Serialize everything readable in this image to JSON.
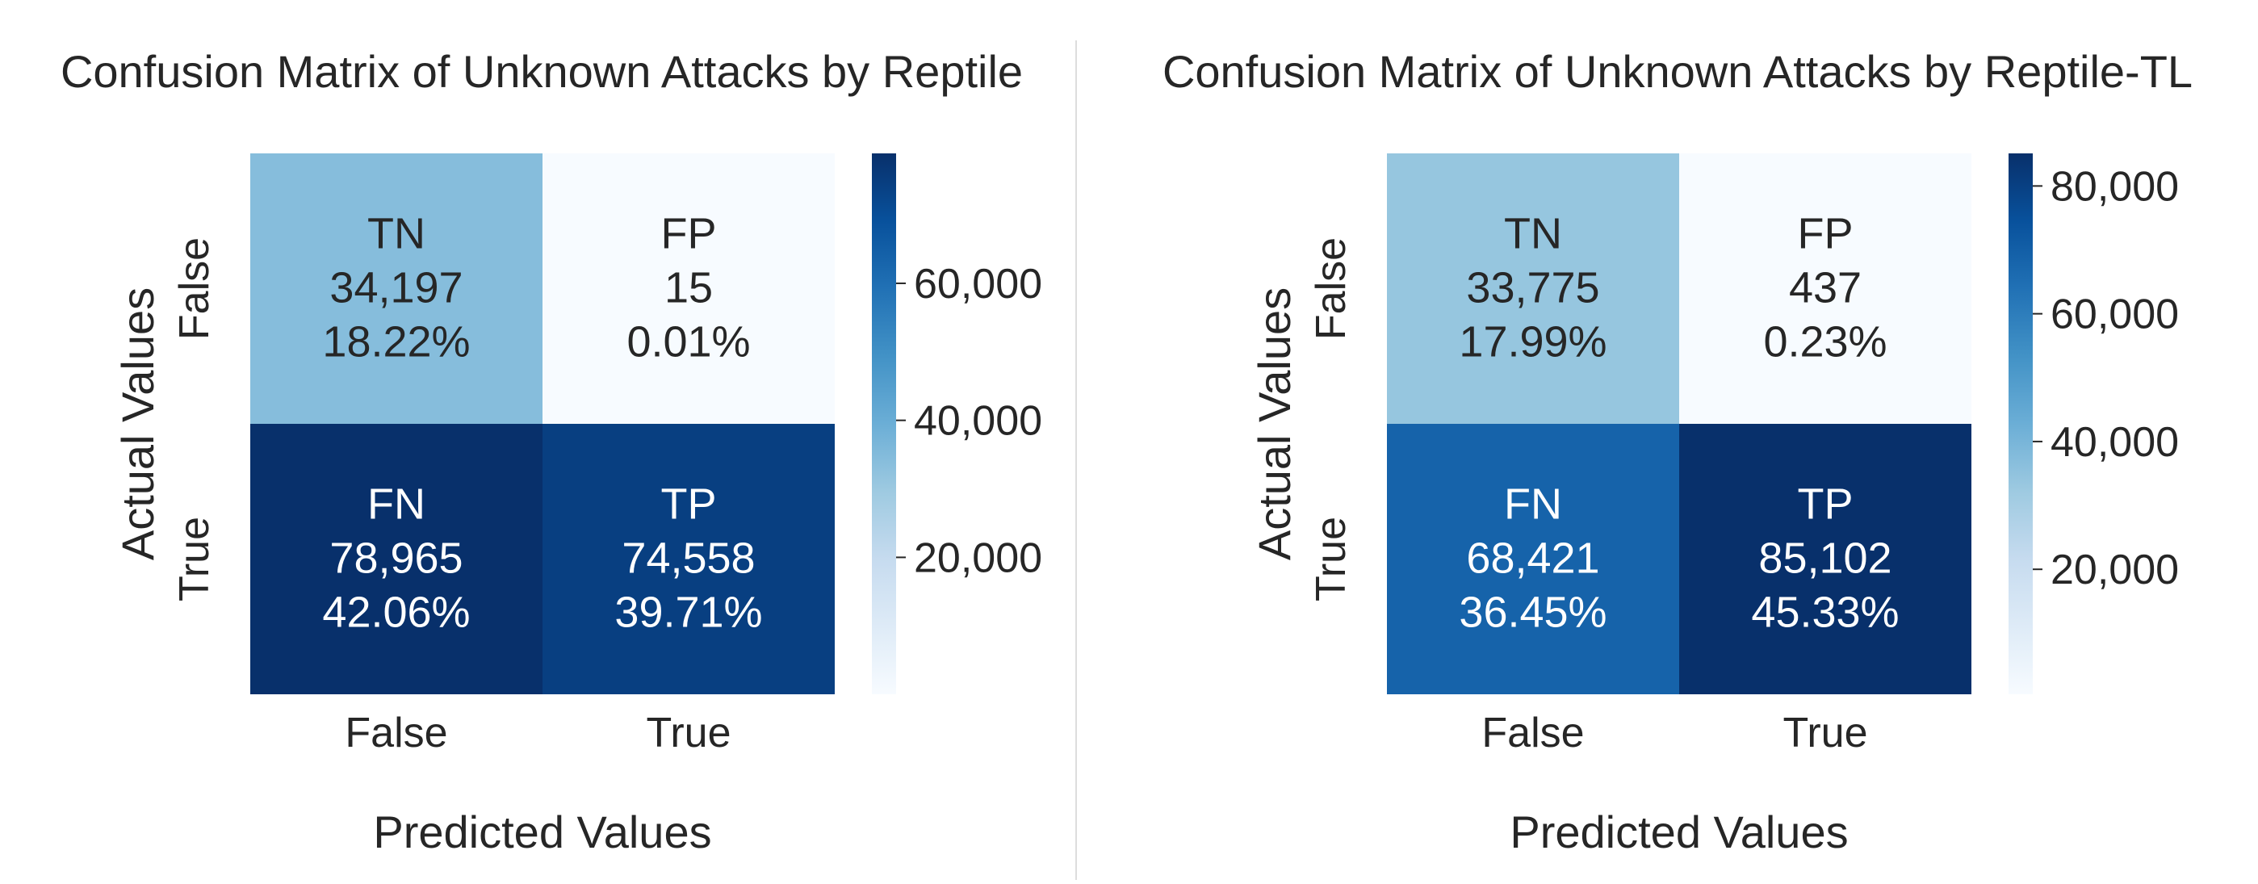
{
  "chart_data": [
    {
      "type": "heatmap",
      "title": "Confusion Matrix of Unknown Attacks by Reptile",
      "xlabel": "Predicted Values",
      "ylabel": "Actual Values",
      "x_categories": [
        "False",
        "True"
      ],
      "y_categories": [
        "False",
        "True"
      ],
      "cells": [
        [
          {
            "label": "TN",
            "count": 34197,
            "count_text": "34,197",
            "percent": 18.22,
            "percent_text": "18.22%"
          },
          {
            "label": "FP",
            "count": 15,
            "count_text": "15",
            "percent": 0.01,
            "percent_text": "0.01%"
          }
        ],
        [
          {
            "label": "FN",
            "count": 78965,
            "count_text": "78,965",
            "percent": 42.06,
            "percent_text": "42.06%"
          },
          {
            "label": "TP",
            "count": 74558,
            "count_text": "74,558",
            "percent": 39.71,
            "percent_text": "39.71%"
          }
        ]
      ],
      "colorbar": {
        "min": 15,
        "max": 78965,
        "ticks": [
          20000,
          40000,
          60000
        ],
        "tick_labels": [
          "20,000",
          "40,000",
          "60,000"
        ]
      },
      "colormap": "Blues"
    },
    {
      "type": "heatmap",
      "title": "Confusion Matrix of Unknown Attacks by Reptile-TL",
      "xlabel": "Predicted Values",
      "ylabel": "Actual Values",
      "x_categories": [
        "False",
        "True"
      ],
      "y_categories": [
        "False",
        "True"
      ],
      "cells": [
        [
          {
            "label": "TN",
            "count": 33775,
            "count_text": "33,775",
            "percent": 17.99,
            "percent_text": "17.99%"
          },
          {
            "label": "FP",
            "count": 437,
            "count_text": "437",
            "percent": 0.23,
            "percent_text": "0.23%"
          }
        ],
        [
          {
            "label": "FN",
            "count": 68421,
            "count_text": "68,421",
            "percent": 36.45,
            "percent_text": "36.45%"
          },
          {
            "label": "TP",
            "count": 85102,
            "count_text": "85,102",
            "percent": 45.33,
            "percent_text": "45.33%"
          }
        ]
      ],
      "colorbar": {
        "min": 437,
        "max": 85102,
        "ticks": [
          20000,
          40000,
          60000,
          80000
        ],
        "tick_labels": [
          "20,000",
          "40,000",
          "60,000",
          "80,000"
        ]
      },
      "colormap": "Blues"
    }
  ],
  "colors": {
    "divider": "#dddddd",
    "text_dark": "#262626",
    "text_light": "#ffffff",
    "blues_stops": [
      "#f7fbff",
      "#deebf7",
      "#c6dbef",
      "#9ecae1",
      "#6baed6",
      "#4292c6",
      "#2171b5",
      "#08519c",
      "#08306b"
    ]
  }
}
